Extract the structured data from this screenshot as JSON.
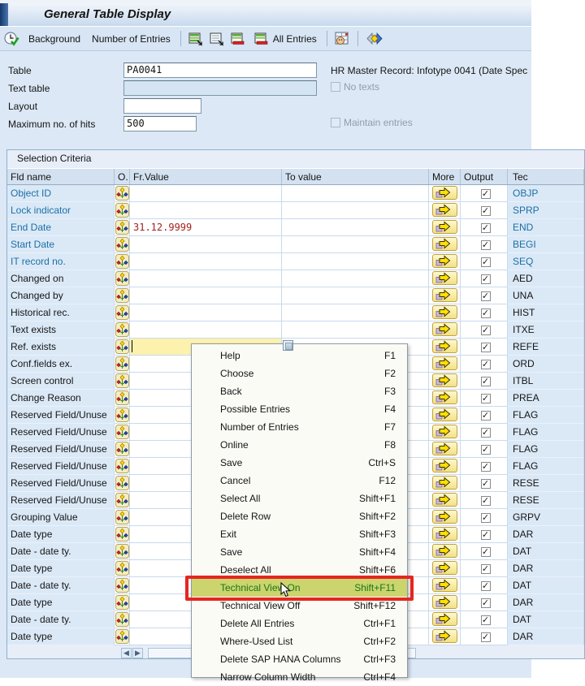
{
  "window": {
    "title": "General Table Display"
  },
  "toolbar": {
    "background_label": "Background",
    "number_of_entries_label": "Number of Entries",
    "all_entries_label": "All Entries"
  },
  "form": {
    "table_label": "Table",
    "table_value": "PA0041",
    "text_table_label": "Text table",
    "text_table_value": "",
    "layout_label": "Layout",
    "layout_value": "",
    "max_hits_label": "Maximum no. of hits",
    "max_hits_value": "500",
    "description": "HR Master Record: Infotype 0041 (Date Spec",
    "no_texts_label": "No texts",
    "no_texts_checked": false,
    "maintain_label": "Maintain entries",
    "maintain_checked": false
  },
  "selection": {
    "title": "Selection Criteria",
    "columns": [
      "Fld name",
      "O.",
      "Fr.Value",
      "To value",
      "More",
      "Output",
      "Tec"
    ],
    "rows": [
      {
        "field": "Object ID",
        "fr": "",
        "to": "",
        "tech": "OBJP",
        "key": true,
        "output": true
      },
      {
        "field": "Lock indicator",
        "fr": "",
        "to": "",
        "tech": "SPRP",
        "key": true,
        "output": true
      },
      {
        "field": "End Date",
        "fr": "31.12.9999",
        "to": "",
        "tech": "END",
        "key": true,
        "output": true,
        "fr_red": true
      },
      {
        "field": "Start Date",
        "fr": "",
        "to": "",
        "tech": "BEGI",
        "key": true,
        "output": true
      },
      {
        "field": "IT record no.",
        "fr": "",
        "to": "",
        "tech": "SEQ",
        "key": true,
        "output": true
      },
      {
        "field": "Changed on",
        "fr": "",
        "to": "",
        "tech": "AED",
        "key": false,
        "output": true
      },
      {
        "field": "Changed by",
        "fr": "",
        "to": "",
        "tech": "UNA",
        "key": false,
        "output": true
      },
      {
        "field": "Historical rec.",
        "fr": "",
        "to": "",
        "tech": "HIST",
        "key": false,
        "output": true
      },
      {
        "field": "Text exists",
        "fr": "",
        "to": "",
        "tech": "ITXE",
        "key": false,
        "output": true
      },
      {
        "field": "Ref. exists",
        "fr": "",
        "to": "",
        "tech": "REFE",
        "key": false,
        "output": true,
        "focused": true
      },
      {
        "field": "Conf.fields ex.",
        "fr": "",
        "to": "",
        "tech": "ORD",
        "key": false,
        "output": true
      },
      {
        "field": "Screen control",
        "fr": "",
        "to": "",
        "tech": "ITBL",
        "key": false,
        "output": true
      },
      {
        "field": "Change Reason",
        "fr": "",
        "to": "",
        "tech": "PREA",
        "key": false,
        "output": true
      },
      {
        "field": "Reserved Field/Unuse",
        "fr": "",
        "to": "",
        "tech": "FLAG",
        "key": false,
        "output": true
      },
      {
        "field": "Reserved Field/Unuse",
        "fr": "",
        "to": "",
        "tech": "FLAG",
        "key": false,
        "output": true
      },
      {
        "field": "Reserved Field/Unuse",
        "fr": "",
        "to": "",
        "tech": "FLAG",
        "key": false,
        "output": true
      },
      {
        "field": "Reserved Field/Unuse",
        "fr": "",
        "to": "",
        "tech": "FLAG",
        "key": false,
        "output": true
      },
      {
        "field": "Reserved Field/Unuse",
        "fr": "",
        "to": "",
        "tech": "RESE",
        "key": false,
        "output": true
      },
      {
        "field": "Reserved Field/Unuse",
        "fr": "",
        "to": "",
        "tech": "RESE",
        "key": false,
        "output": true
      },
      {
        "field": "Grouping Value",
        "fr": "",
        "to": "",
        "tech": "GRPV",
        "key": false,
        "output": true
      },
      {
        "field": "Date type",
        "fr": "",
        "to": "",
        "tech": "DAR",
        "key": false,
        "output": true
      },
      {
        "field": "Date - date ty.",
        "fr": "",
        "to": "",
        "tech": "DAT",
        "key": false,
        "output": true
      },
      {
        "field": "Date type",
        "fr": "",
        "to": "",
        "tech": "DAR",
        "key": false,
        "output": true
      },
      {
        "field": "Date - date ty.",
        "fr": "",
        "to": "",
        "tech": "DAT",
        "key": false,
        "output": true
      },
      {
        "field": "Date type",
        "fr": "",
        "to": "",
        "tech": "DAR",
        "key": false,
        "output": true
      },
      {
        "field": "Date - date ty.",
        "fr": "",
        "to": "",
        "tech": "DAT",
        "key": false,
        "output": true
      },
      {
        "field": "Date type",
        "fr": "",
        "to": "",
        "tech": "DAR",
        "key": false,
        "output": true
      }
    ]
  },
  "context_menu": {
    "items": [
      {
        "label": "Help",
        "shortcut": "F1"
      },
      {
        "label": "Choose",
        "shortcut": "F2"
      },
      {
        "label": "Back",
        "shortcut": "F3"
      },
      {
        "label": "Possible Entries",
        "shortcut": "F4"
      },
      {
        "label": "Number of Entries",
        "shortcut": "F7"
      },
      {
        "label": "Online",
        "shortcut": "F8"
      },
      {
        "label": "Save",
        "shortcut": "Ctrl+S"
      },
      {
        "label": "Cancel",
        "shortcut": "F12"
      },
      {
        "label": "Select All",
        "shortcut": "Shift+F1"
      },
      {
        "label": "Delete Row",
        "shortcut": "Shift+F2"
      },
      {
        "label": "Exit",
        "shortcut": "Shift+F3"
      },
      {
        "label": "Save",
        "shortcut": "Shift+F4"
      },
      {
        "label": "Deselect All",
        "shortcut": "Shift+F6"
      },
      {
        "label": "Technical View On",
        "shortcut": "Shift+F11",
        "highlighted": true
      },
      {
        "label": "Technical View Off",
        "shortcut": "Shift+F12"
      },
      {
        "label": "Delete All Entries",
        "shortcut": "Ctrl+F1"
      },
      {
        "label": "Where-Used List",
        "shortcut": "Ctrl+F2"
      },
      {
        "label": "Delete SAP HANA Columns",
        "shortcut": "Ctrl+F3"
      },
      {
        "label": "Narrow Column Width",
        "shortcut": "Ctrl+F4"
      }
    ]
  },
  "colors": {
    "key_field_blue": "#1d6fa5",
    "value_red": "#a62121",
    "focus_yellow": "#fdf2ad",
    "menu_highlight_bg": "#ccd46d",
    "menu_highlight_text": "#157815",
    "annotation_red": "#e52620"
  }
}
